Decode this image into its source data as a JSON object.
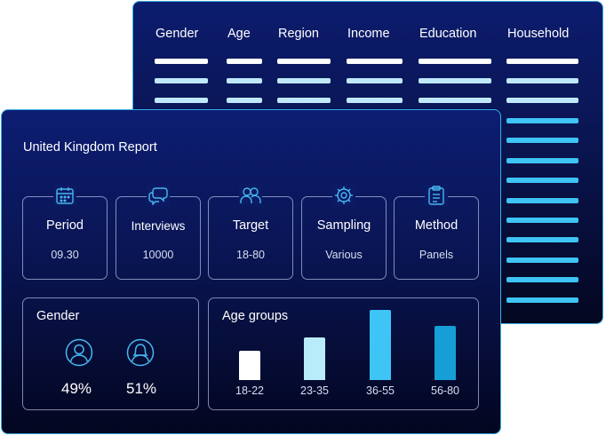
{
  "table": {
    "columns": [
      "Gender",
      "Age",
      "Region",
      "Income",
      "Education",
      "Household"
    ]
  },
  "report": {
    "title": "United Kingdom Report",
    "cards": [
      {
        "label": "Period",
        "value": "09.30",
        "icon": "calendar-icon"
      },
      {
        "label": "Interviews",
        "value": "10000",
        "icon": "chat-bubbles-icon"
      },
      {
        "label": "Target",
        "value": "18-80",
        "icon": "people-icon"
      },
      {
        "label": "Sampling",
        "value": "Various",
        "icon": "gear-icon"
      },
      {
        "label": "Method",
        "value": "Panels",
        "icon": "clipboard-icon"
      }
    ],
    "gender": {
      "title": "Gender",
      "items": [
        {
          "value": "49%",
          "icon": "male-avatar-icon"
        },
        {
          "value": "51%",
          "icon": "female-avatar-icon"
        }
      ]
    },
    "age_groups": {
      "title": "Age groups",
      "bars": [
        {
          "label": "18-22",
          "color": "#ffffff"
        },
        {
          "label": "23-35",
          "color": "#b9ecfb"
        },
        {
          "label": "36-55",
          "color": "#3ec4f5"
        },
        {
          "label": "56-80",
          "color": "#159fd6"
        }
      ]
    }
  },
  "colors": {
    "accent": "#3aaee8",
    "panel_dark": "#0a1550"
  }
}
